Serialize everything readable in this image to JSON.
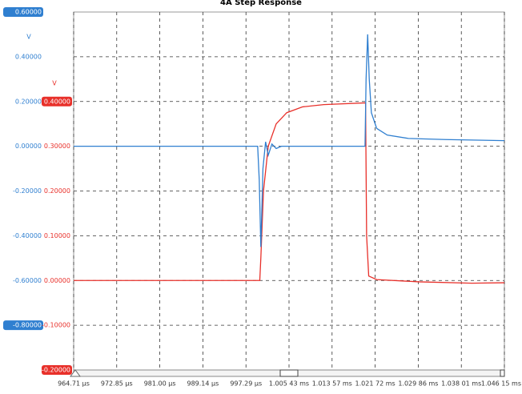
{
  "chart_data": {
    "type": "line",
    "title": "4A Step Response",
    "xlim": [
      964.71,
      1046.15
    ],
    "xticks": [
      {
        "value": 964.71,
        "label": "964.71 µs"
      },
      {
        "value": 972.85,
        "label": "972.85 µs"
      },
      {
        "value": 981.0,
        "label": "981.00 µs"
      },
      {
        "value": 989.14,
        "label": "989.14 µs"
      },
      {
        "value": 997.29,
        "label": "997.29 µs"
      },
      {
        "value": 1005.43,
        "label": "1.005 43 ms"
      },
      {
        "value": 1013.57,
        "label": "1.013 57 ms"
      },
      {
        "value": 1021.72,
        "label": "1.021 72 ms"
      },
      {
        "value": 1029.86,
        "label": "1.029 86 ms"
      },
      {
        "value": 1038.01,
        "label": "1.038 01 ms"
      },
      {
        "value": 1046.15,
        "label": "1.046 15 ms"
      }
    ],
    "ylim": [
      -1.0,
      0.6
    ],
    "yunit": "V",
    "yticks": [
      {
        "value": 0.6,
        "label": "0.60000"
      },
      {
        "value": 0.4,
        "label": "0.40000"
      },
      {
        "value": 0.2,
        "label": "0.20000"
      },
      {
        "value": 0,
        "label": "0.00000"
      },
      {
        "value": -0.2,
        "label": "-0.20000"
      },
      {
        "value": -0.4,
        "label": "-0.40000"
      },
      {
        "value": -0.6,
        "label": "-0.60000"
      },
      {
        "value": -0.8,
        "label": "-0.80000"
      }
    ],
    "y2lim": [
      -0.2,
      0.6
    ],
    "y2unit": "V",
    "y2ticks": [
      {
        "value": 0.4,
        "label": "0.40000"
      },
      {
        "value": 0.3,
        "label": "0.30000"
      },
      {
        "value": 0.2,
        "label": "0.20000"
      },
      {
        "value": 0.1,
        "label": "0.10000"
      },
      {
        "value": 0,
        "label": "0.00000"
      },
      {
        "value": -0.1,
        "label": "-0.10000"
      },
      {
        "value": -0.2,
        "label": "-0.20000"
      }
    ],
    "grid": true,
    "series": [
      {
        "color": "#2f7fd0",
        "axis": "y",
        "x": [
          964.71,
          999.5,
          999.8,
          1000.1,
          1000.5,
          1001.0,
          1001.5,
          1002.2,
          1003.0,
          1004.0,
          1019.8,
          1020.0,
          1020.3,
          1020.6,
          1021.0,
          1022.0,
          1024.0,
          1028.0,
          1035.0,
          1046.15
        ],
        "values": [
          0,
          0,
          -0.15,
          -0.45,
          -0.1,
          0.02,
          -0.04,
          0.01,
          -0.01,
          0,
          0,
          0.3,
          0.5,
          0.3,
          0.15,
          0.08,
          0.05,
          0.035,
          0.03,
          0.025
        ]
      },
      {
        "color": "#e8302a",
        "axis": "y2",
        "x": [
          964.71,
          999.9,
          1000.1,
          1000.6,
          1001.5,
          1003.0,
          1005.0,
          1008.0,
          1012.0,
          1019.9,
          1020.1,
          1020.5,
          1022.0,
          1030.0,
          1040.0,
          1046.15
        ],
        "values": [
          0,
          0,
          0.05,
          0.2,
          0.3,
          0.35,
          0.375,
          0.388,
          0.393,
          0.397,
          0.1,
          0.01,
          0.002,
          -0.003,
          -0.006,
          -0.005
        ]
      }
    ]
  }
}
